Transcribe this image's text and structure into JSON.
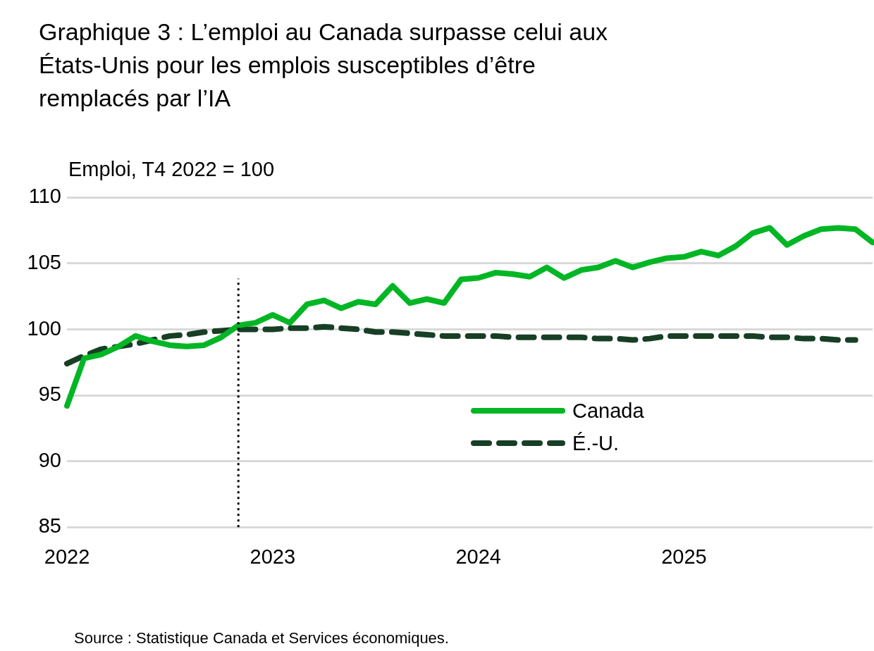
{
  "chart_data": {
    "type": "line",
    "title": "Graphique 3 : L’emploi au Canada surpasse celui aux États-Unis pour les emplois susceptibles d’être remplacés par l’IA",
    "ylabel": "Emploi, T4 2022 = 100",
    "annotations": [
      "Source : Statistique Canada et Services économiques."
    ],
    "x": [
      "2022-01",
      "2022-02",
      "2022-03",
      "2022-04",
      "2022-05",
      "2022-06",
      "2022-07",
      "2022-08",
      "2022-09",
      "2022-10",
      "2022-11",
      "2022-12",
      "2023-01",
      "2023-02",
      "2023-03",
      "2023-04",
      "2023-05",
      "2023-06",
      "2023-07",
      "2023-08",
      "2023-09",
      "2023-10",
      "2023-11",
      "2023-12",
      "2024-01",
      "2024-02",
      "2024-03",
      "2024-04",
      "2024-05",
      "2024-06",
      "2024-07",
      "2024-08",
      "2024-09",
      "2024-10",
      "2024-11",
      "2024-12",
      "2025-01",
      "2025-02",
      "2025-03",
      "2025-04",
      "2025-05",
      "2025-06",
      "2025-07",
      "2025-08",
      "2025-09",
      "2025-10",
      "2025-11",
      "2025-12"
    ],
    "series": [
      {
        "name": "Canada",
        "color": "#00b624",
        "line_style": "solid",
        "values": [
          94.2,
          97.8,
          98.1,
          98.7,
          99.5,
          99.1,
          98.8,
          98.7,
          98.8,
          99.4,
          100.3,
          100.5,
          101.1,
          100.5,
          101.9,
          102.2,
          101.6,
          102.1,
          101.9,
          103.3,
          102.0,
          102.3,
          102.0,
          103.8,
          103.9,
          104.3,
          104.2,
          104.0,
          104.7,
          103.9,
          104.5,
          104.7,
          105.2,
          104.7,
          105.1,
          105.4,
          105.5,
          105.9,
          105.6,
          106.3,
          107.3,
          107.7,
          106.4,
          107.1,
          107.6,
          107.7,
          107.6,
          106.6
        ]
      },
      {
        "name": "É.-U.",
        "color": "#173f25",
        "line_style": "dashed",
        "values": [
          97.4,
          98.0,
          98.5,
          98.7,
          98.9,
          99.2,
          99.5,
          99.6,
          99.8,
          99.9,
          100.0,
          100.0,
          100.0,
          100.1,
          100.1,
          100.2,
          100.1,
          100.0,
          99.8,
          99.8,
          99.7,
          99.6,
          99.5,
          99.5,
          99.5,
          99.5,
          99.4,
          99.4,
          99.4,
          99.4,
          99.4,
          99.3,
          99.3,
          99.2,
          99.3,
          99.5,
          99.5,
          99.5,
          99.5,
          99.5,
          99.5,
          99.4,
          99.4,
          99.3,
          99.3,
          99.2,
          99.2,
          null
        ]
      }
    ],
    "xlim": [
      "2022-01",
      "2025-12"
    ],
    "xticks": [
      {
        "value": "2022-01",
        "label": "2022"
      },
      {
        "value": "2023-01",
        "label": "2023"
      },
      {
        "value": "2024-01",
        "label": "2024"
      },
      {
        "value": "2025-01",
        "label": "2025"
      }
    ],
    "ylim": [
      85,
      110
    ],
    "yticks": [
      85,
      90,
      95,
      100,
      105,
      110
    ],
    "ref_lines": [
      {
        "axis": "x",
        "value": "2022-11",
        "color": "#000000",
        "line_style": "dotted"
      }
    ],
    "grid": "y",
    "legend": "right",
    "marker": "none"
  }
}
